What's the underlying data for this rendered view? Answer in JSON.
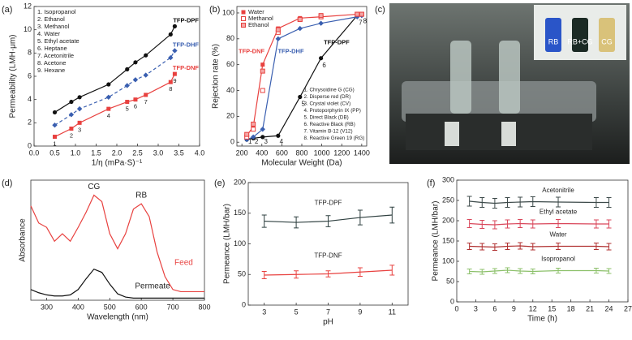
{
  "chart_data": [
    {
      "panel": "(a)",
      "type": "scatter",
      "xlabel": "1/η (mPa·S)⁻¹",
      "ylabel": "Permeability (LMH·μm)",
      "xlim": [
        0,
        4
      ],
      "xticks": [
        {
          "value": 0,
          "label": "0.0"
        },
        0.5,
        {
          "value": 1,
          "label": "1.0"
        },
        1.5,
        {
          "value": 2,
          "label": "2.0"
        },
        2.5,
        {
          "value": 3,
          "label": "3.0"
        },
        3.5,
        {
          "value": 4,
          "label": "4.0"
        }
      ],
      "ylim": [
        0,
        12
      ],
      "yticks": [
        0,
        2,
        4,
        6,
        8,
        10,
        12
      ],
      "x": [
        0.5,
        0.9,
        1.1,
        1.8,
        2.25,
        2.45,
        2.7,
        3.3,
        3.4
      ],
      "series": [
        {
          "name": "TFP-DPF",
          "color": "#111111",
          "marker": "circle",
          "line": "solid",
          "values": [
            2.9,
            3.8,
            4.2,
            5.3,
            6.6,
            7.2,
            7.8,
            9.6,
            10.3
          ]
        },
        {
          "name": "TFP-DHF",
          "color": "#3a5fb0",
          "marker": "diamond",
          "line": "dashed",
          "values": [
            1.8,
            2.7,
            3.2,
            4.2,
            5.2,
            5.7,
            6.1,
            7.6,
            8.2
          ]
        },
        {
          "name": "TFP-DNF",
          "color": "#e8413f",
          "marker": "square",
          "line": "solid",
          "values": [
            0.8,
            1.5,
            2.0,
            3.2,
            3.8,
            4.0,
            4.4,
            5.5,
            6.2
          ]
        }
      ],
      "legend": [
        "1. Isopropanol",
        "2. Ethanol",
        "3. Methanol",
        "4. Water",
        "5. Ethyl acetate",
        "6. Heptane",
        "7. Acetonitrile",
        "8. Acetone",
        "9. Hexane"
      ],
      "point_labels": [
        "1",
        "2",
        "3",
        "4",
        "5",
        "6",
        "7",
        "8",
        "9"
      ]
    },
    {
      "panel": "(b)",
      "type": "scatter",
      "xlabel": "Molecular Weight (Da)",
      "ylabel": "Rejection rate (%)",
      "xlim": [
        150,
        1450
      ],
      "xticks": [
        200,
        400,
        600,
        800,
        1000,
        1200,
        1400
      ],
      "ylim": [
        -3,
        105
      ],
      "yticks": [
        0,
        20,
        40,
        60,
        80,
        100
      ],
      "x": [
        249,
        314,
        408,
        563,
        782,
        992,
        1355,
        1400
      ],
      "series": [
        {
          "name": "TFP-DPF",
          "color": "#111111",
          "marker": "circle",
          "line": "solid",
          "values": [
            2,
            3,
            4,
            5,
            35,
            65,
            98,
            99
          ]
        },
        {
          "name": "TFP-DHF",
          "color": "#3a5fb0",
          "marker": "diamond",
          "line": "solid",
          "values": [
            2,
            4,
            10,
            80,
            88,
            92,
            97,
            98
          ]
        },
        {
          "name": "Water",
          "color": "#e8413f",
          "marker": "square",
          "line": "solid",
          "values": [
            5,
            12,
            60,
            88,
            96,
            97,
            99,
            99
          ]
        },
        {
          "name": "Methanol",
          "color": "#e8413f",
          "marker": "square-open",
          "line": "none",
          "values": [
            4,
            10,
            40,
            85,
            95,
            97,
            99,
            99
          ]
        },
        {
          "name": "Ethanol",
          "color": "#e8413f",
          "marker": "square-hatched",
          "line": "none",
          "values": [
            6,
            14,
            55,
            87,
            95,
            98,
            99,
            99
          ]
        }
      ],
      "annotation": "TFP-DNF",
      "dyes": [
        "1. Chrysoidine G (CG)",
        "2. Disperse red (DR)",
        "3. Crystal violet (CV)",
        "4. Protoporphyrin IX (PP)",
        "5. Direct Black (DB)",
        "6. Reactive Black (RB)",
        "7. Vitamin B-12 (V12)",
        "8. Reactive Green 19 (RG)"
      ],
      "point_labels": [
        "1",
        "2",
        "3",
        "4",
        "5",
        "6",
        "7",
        "8"
      ]
    },
    {
      "panel": "(c)",
      "type": "photo",
      "labels": [
        "RB",
        "RB+CG",
        "CG"
      ]
    },
    {
      "panel": "(d)",
      "type": "line",
      "xlabel": "Wavelength (nm)",
      "ylabel": "Absorbance",
      "xlim": [
        250,
        800
      ],
      "xticks": [
        300,
        400,
        500,
        600,
        700,
        800
      ],
      "ylim": [
        0,
        1.12
      ],
      "x": [
        250,
        275,
        300,
        325,
        350,
        375,
        400,
        425,
        450,
        475,
        500,
        525,
        550,
        575,
        600,
        625,
        650,
        675,
        700,
        725,
        750,
        775,
        800
      ],
      "series": [
        {
          "name": "Feed",
          "color": "#e8413f",
          "line": "solid",
          "values": [
            0.88,
            0.72,
            0.68,
            0.55,
            0.62,
            0.55,
            0.68,
            0.82,
            0.98,
            0.92,
            0.62,
            0.48,
            0.62,
            0.85,
            0.9,
            0.78,
            0.45,
            0.22,
            0.1,
            0.08,
            0.08,
            0.08,
            0.08
          ]
        },
        {
          "name": "Permeate",
          "color": "#111111",
          "line": "solid",
          "values": [
            0.1,
            0.07,
            0.05,
            0.04,
            0.04,
            0.05,
            0.1,
            0.2,
            0.29,
            0.26,
            0.15,
            0.06,
            0.03,
            0.02,
            0.02,
            0.02,
            0.02,
            0.02,
            0.02,
            0.02,
            0.02,
            0.02,
            0.02
          ]
        }
      ],
      "annotations": [
        "CG",
        "RB"
      ]
    },
    {
      "panel": "(e)",
      "type": "line",
      "xlabel": "pH",
      "ylabel": "Permeance (LMH/bar)",
      "xlim": [
        2,
        12
      ],
      "xticks": [
        3,
        5,
        7,
        9,
        11
      ],
      "ylim": [
        0,
        200
      ],
      "yticks": [
        0,
        50,
        100,
        150,
        200
      ],
      "x": [
        3,
        5,
        7,
        9,
        11
      ],
      "series": [
        {
          "name": "TFP-DPF",
          "color": "#2f4040",
          "line": "solid",
          "values": [
            137,
            135,
            137,
            143,
            147
          ],
          "errors": [
            10,
            9,
            9,
            12,
            13
          ]
        },
        {
          "name": "TFP-DNF",
          "color": "#e8413f",
          "line": "solid",
          "values": [
            49,
            50,
            51,
            54,
            57
          ],
          "errors": [
            6,
            6,
            5,
            7,
            8
          ]
        }
      ]
    },
    {
      "panel": "(f)",
      "type": "line",
      "xlabel": "Time (h)",
      "ylabel": "Permeance (LMH/bar)",
      "xlim": [
        0,
        27
      ],
      "xticks": [
        0,
        3,
        6,
        9,
        12,
        15,
        18,
        21,
        24,
        27
      ],
      "ylim": [
        0,
        300
      ],
      "yticks": [
        0,
        50,
        100,
        150,
        200,
        250,
        300
      ],
      "x": [
        2,
        4,
        6,
        8,
        10,
        12,
        16,
        22,
        24
      ],
      "series": [
        {
          "name": "Acetonitrile",
          "color": "#3d4a4a",
          "line": "solid",
          "values": [
            248,
            245,
            243,
            245,
            246,
            247,
            246,
            245,
            245
          ],
          "errors": [
            12,
            12,
            12,
            12,
            12,
            12,
            12,
            12,
            12
          ]
        },
        {
          "name": "Ethyl acetate",
          "color": "#d9465a",
          "line": "solid",
          "values": [
            193,
            191,
            190,
            192,
            193,
            192,
            193,
            192,
            192
          ],
          "errors": [
            10,
            10,
            10,
            10,
            10,
            10,
            10,
            10,
            10
          ]
        },
        {
          "name": "Water",
          "color": "#b03030",
          "line": "solid",
          "values": [
            137,
            136,
            135,
            137,
            138,
            136,
            137,
            137,
            136
          ],
          "errors": [
            8,
            8,
            8,
            8,
            8,
            8,
            8,
            8,
            8
          ]
        },
        {
          "name": "Isopropanol",
          "color": "#8cc06a",
          "line": "solid",
          "values": [
            75,
            74,
            76,
            78,
            76,
            75,
            77,
            77,
            76
          ],
          "errors": [
            6,
            6,
            6,
            6,
            6,
            6,
            6,
            6,
            6
          ]
        }
      ]
    }
  ]
}
